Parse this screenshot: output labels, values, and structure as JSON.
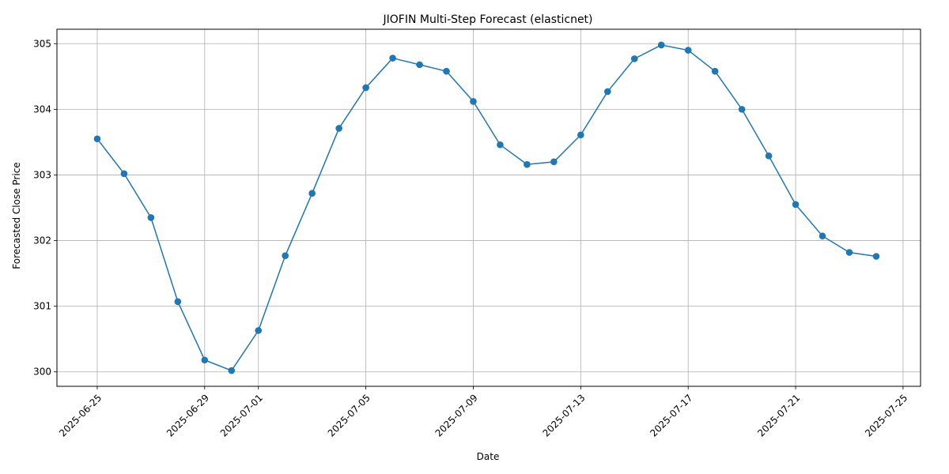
{
  "chart_data": {
    "type": "line",
    "title": "JIOFIN Multi-Step Forecast (elasticnet)",
    "xlabel": "Date",
    "ylabel": "Forecasted Close Price",
    "x": [
      "2025-06-25",
      "2025-06-26",
      "2025-06-27",
      "2025-06-28",
      "2025-06-29",
      "2025-06-30",
      "2025-07-01",
      "2025-07-02",
      "2025-07-03",
      "2025-07-04",
      "2025-07-05",
      "2025-07-06",
      "2025-07-07",
      "2025-07-08",
      "2025-07-09",
      "2025-07-10",
      "2025-07-11",
      "2025-07-12",
      "2025-07-13",
      "2025-07-14",
      "2025-07-15",
      "2025-07-16",
      "2025-07-17",
      "2025-07-18",
      "2025-07-19",
      "2025-07-20",
      "2025-07-21",
      "2025-07-22",
      "2025-07-23",
      "2025-07-24"
    ],
    "series": [
      {
        "values": [
          303.55,
          303.02,
          302.35,
          301.07,
          300.18,
          300.02,
          300.63,
          301.77,
          302.72,
          303.71,
          304.33,
          304.78,
          304.68,
          304.58,
          304.12,
          303.46,
          303.16,
          303.2,
          303.61,
          304.27,
          304.77,
          304.98,
          304.9,
          304.58,
          304.0,
          303.29,
          302.55,
          302.07,
          301.82,
          301.76
        ],
        "color": "#1f77b4",
        "marker": "circle"
      }
    ],
    "xticks": [
      "2025-06-25",
      "2025-06-29",
      "2025-07-01",
      "2025-07-05",
      "2025-07-09",
      "2025-07-13",
      "2025-07-17",
      "2025-07-21",
      "2025-07-25"
    ],
    "yticks": [
      300,
      301,
      302,
      303,
      304,
      305
    ],
    "xlim": [
      "2025-06-23",
      "2025-07-26"
    ],
    "ylim": [
      299.78,
      305.22
    ],
    "grid": true
  }
}
